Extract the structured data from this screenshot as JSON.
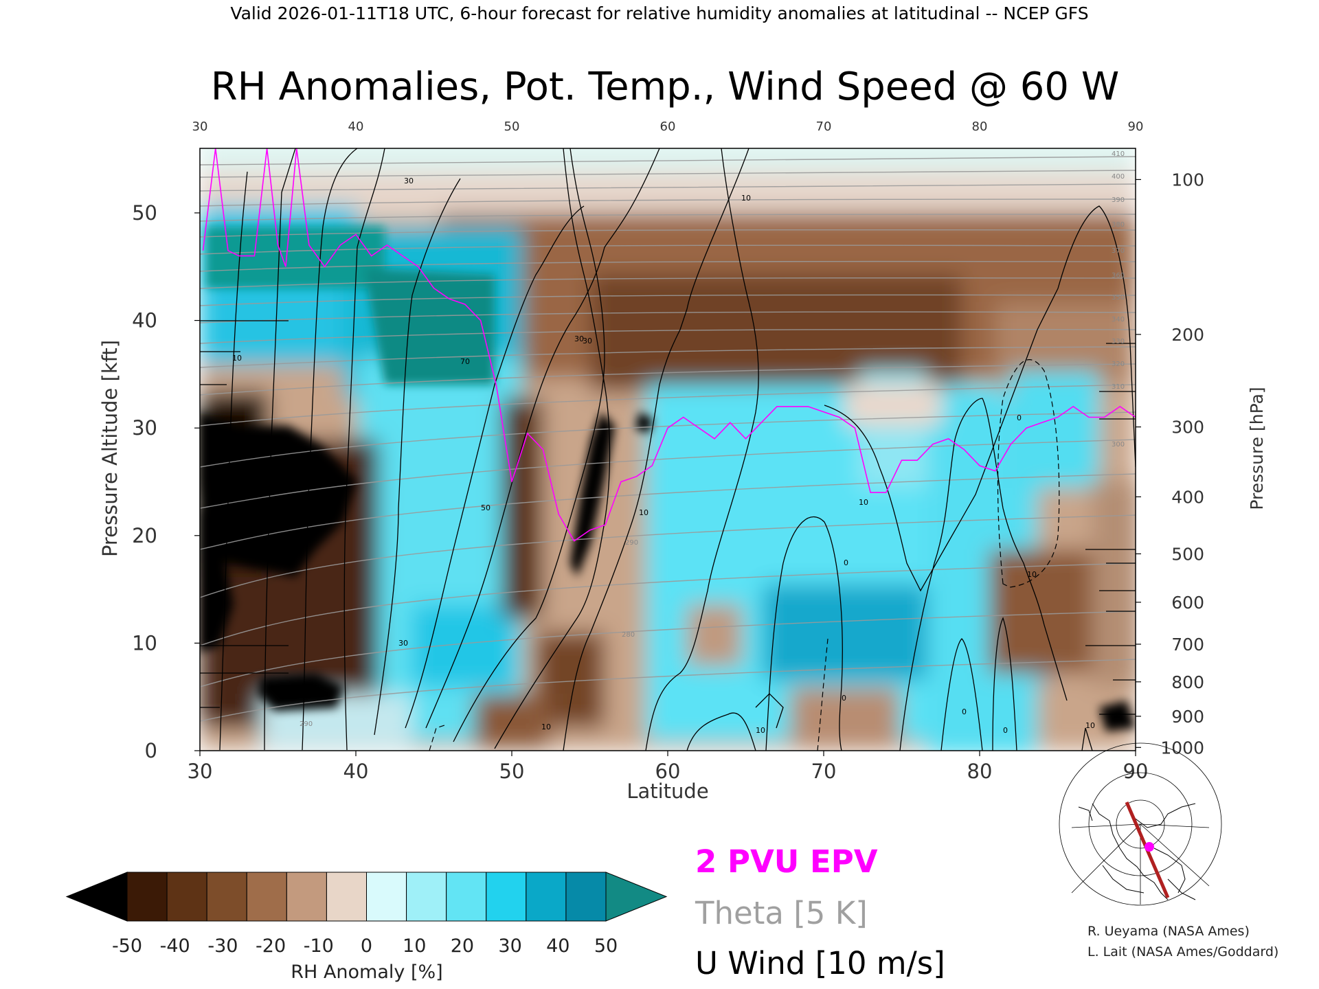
{
  "header": "Valid 2026-01-11T18 UTC, 6-hour forecast for relative humidity anomalies at latitudinal -- NCEP GFS",
  "title": "RH Anomalies, Pot. Temp., Wind Speed @ 60 W",
  "chart_data": {
    "type": "heatmap",
    "xlabel": "Latitude",
    "ylabel": "Pressure Altitude [kft]",
    "y2label": "Pressure [hPa]",
    "xlim": [
      30,
      90
    ],
    "ylim": [
      0,
      56
    ],
    "x_ticks": [
      "30",
      "40",
      "50",
      "60",
      "70",
      "80",
      "90"
    ],
    "y_ticks": [
      "0",
      "10",
      "20",
      "30",
      "40",
      "50"
    ],
    "pressure_ticks": [
      {
        "label": "100",
        "kft": 53.1
      },
      {
        "label": "200",
        "kft": 38.7
      },
      {
        "label": "300",
        "kft": 30.1
      },
      {
        "label": "400",
        "kft": 23.6
      },
      {
        "label": "500",
        "kft": 18.3
      },
      {
        "label": "600",
        "kft": 13.8
      },
      {
        "label": "700",
        "kft": 9.9
      },
      {
        "label": "800",
        "kft": 6.4
      },
      {
        "label": "900",
        "kft": 3.2
      },
      {
        "label": "1000",
        "kft": 0.3
      }
    ],
    "colorbar": {
      "label": "RH Anomaly [%]",
      "ticks": [
        "-50",
        "-40",
        "-30",
        "-20",
        "-10",
        "0",
        "10",
        "20",
        "30",
        "40",
        "50"
      ],
      "colors": [
        "#000000",
        "#3b1a06",
        "#5e3315",
        "#7d4d2a",
        "#9f6d4a",
        "#c39a7e",
        "#e8d6c8",
        "#d9fafc",
        "#9ff0f8",
        "#62e4f4",
        "#22d2ee",
        "#0aa8c8",
        "#068aa8",
        "#128a84"
      ]
    },
    "legend": [
      {
        "label": "2 PVU EPV",
        "color": "#ff00ff"
      },
      {
        "label": "Theta [5 K]",
        "color": "#a0a0a0"
      },
      {
        "label": "U Wind [10 m/s]",
        "color": "#000000"
      }
    ],
    "contour_labels": {
      "wind": [
        "30",
        "30",
        "10",
        "30",
        "10",
        "70",
        "50",
        "30",
        "10",
        "10",
        "0",
        "0",
        "10",
        "10",
        "0",
        "0",
        "10",
        "0",
        "10"
      ],
      "theta": [
        "410",
        "400",
        "390",
        "380",
        "370",
        "360",
        "350",
        "340",
        "330",
        "320",
        "310",
        "300",
        "290",
        "280",
        "290"
      ]
    },
    "series": [
      {
        "name": "2 PVU EPV",
        "x": [
          30.2,
          31,
          31.8,
          32.5,
          33.5,
          34.3,
          35,
          35.5,
          36.2,
          37,
          38,
          39,
          40,
          41,
          42,
          43,
          44,
          45,
          46,
          47,
          48,
          49,
          50,
          51,
          52,
          53,
          54,
          55,
          56,
          57,
          58,
          59,
          60,
          61,
          62,
          63,
          64,
          65,
          66,
          67,
          68,
          69,
          70,
          71,
          72,
          73,
          74,
          75,
          76,
          77,
          78,
          79,
          80,
          81,
          82,
          83,
          84,
          85,
          86,
          87,
          88,
          89,
          90
        ],
        "y": [
          46.5,
          56,
          46.5,
          46,
          46,
          56,
          47,
          45,
          56,
          47,
          45,
          47,
          48,
          46,
          47,
          46,
          45,
          43,
          42,
          41.5,
          40,
          34,
          25,
          29.5,
          28,
          22,
          19.5,
          20.5,
          21,
          25,
          25.5,
          26.5,
          30,
          31,
          30,
          29,
          30.5,
          29,
          30.5,
          32,
          32,
          32,
          31.5,
          31,
          30,
          24,
          24,
          27,
          27,
          28.5,
          29,
          28,
          26.5,
          26,
          28.5,
          30,
          30.5,
          31,
          32,
          31,
          31,
          32,
          31
        ]
      }
    ],
    "regions": [
      {
        "kind": "dry",
        "x": [
          30,
          40
        ],
        "y": [
          3,
          30
        ],
        "rh_min": -50
      },
      {
        "kind": "moist",
        "x": [
          30,
          46
        ],
        "y": [
          33,
          48
        ],
        "rh_max": 50
      },
      {
        "kind": "moist",
        "x": [
          41,
          54
        ],
        "y": [
          2,
          34
        ],
        "rh_max": 30
      },
      {
        "kind": "dry",
        "x": [
          53,
          58
        ],
        "y": [
          10,
          30
        ],
        "rh_min": -50
      },
      {
        "kind": "moist",
        "x": [
          56,
          76
        ],
        "y": [
          2,
          32
        ],
        "rh_max": 40
      },
      {
        "kind": "dry",
        "x": [
          46,
          90
        ],
        "y": [
          34,
          52
        ],
        "rh_min": -30
      },
      {
        "kind": "dry",
        "x": [
          80,
          88
        ],
        "y": [
          6,
          16
        ],
        "rh_min": -20
      }
    ]
  },
  "map_inset": {
    "section_line": "60 W",
    "marker": "pink-dot"
  },
  "credits": [
    "R. Ueyama (NASA Ames)",
    "L. Lait (NASA Ames/Goddard)"
  ]
}
